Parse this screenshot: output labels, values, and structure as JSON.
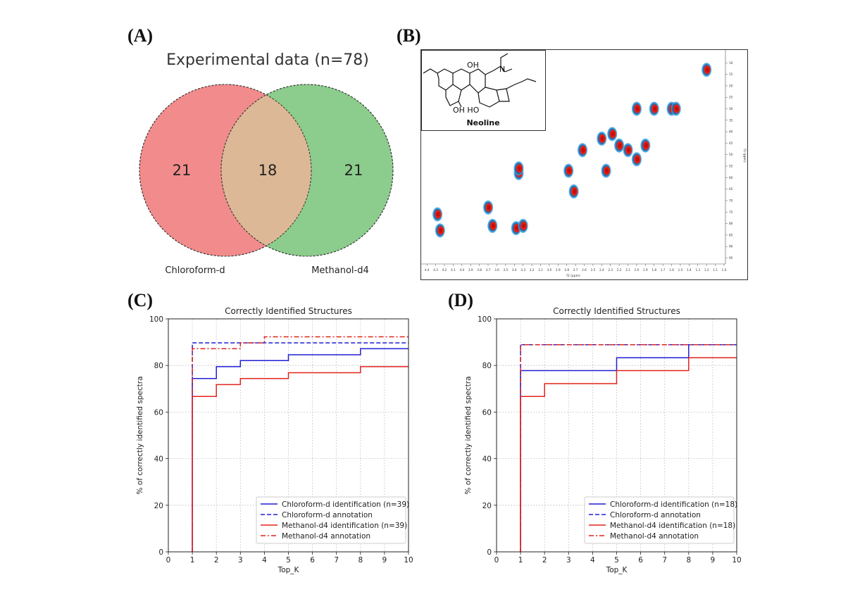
{
  "panels": {
    "a": "(A)",
    "b": "(B)",
    "c": "(C)",
    "d": "(D)"
  },
  "venn": {
    "title": "Experimental data (n=78)",
    "left_count": "21",
    "overlap_count": "18",
    "right_count": "21",
    "left_label": "Chloroform-d",
    "right_label": "Methanol-d4",
    "left_color": "#f28b8b",
    "right_color": "#8ccc8c",
    "overlap_color": "#dcb896"
  },
  "nmr": {
    "compound_name": "Neoline",
    "oh_label_top": "OH",
    "oh_label_bottom": "OH HO",
    "n_label": "N",
    "xlabel": "f2 (ppm)",
    "ylabel": "f1 (ppm)",
    "xticks": [
      "4.4",
      "4.3",
      "4.2",
      "4.1",
      "4.0",
      "3.9",
      "3.8",
      "3.7",
      "3.6",
      "3.5",
      "3.4",
      "3.3",
      "3.2",
      "3.1",
      "3.0",
      "2.9",
      "2.8",
      "2.7",
      "2.6",
      "2.5",
      "2.4",
      "2.3",
      "2.2",
      "2.1",
      "2.0",
      "1.9",
      "1.8",
      "1.7",
      "1.6",
      "1.5",
      "1.4",
      "1.3",
      "1.2",
      "1.1",
      "1.0"
    ],
    "yticks": [
      "10",
      "15",
      "20",
      "25",
      "30",
      "35",
      "40",
      "45",
      "50",
      "55",
      "60",
      "65",
      "70",
      "75",
      "80",
      "85",
      "90",
      "95"
    ],
    "peaks": [
      {
        "x": 1.2,
        "y": 13
      },
      {
        "x": 2.0,
        "y": 30
      },
      {
        "x": 1.8,
        "y": 30
      },
      {
        "x": 1.6,
        "y": 30
      },
      {
        "x": 1.55,
        "y": 30
      },
      {
        "x": 2.4,
        "y": 43
      },
      {
        "x": 2.28,
        "y": 41
      },
      {
        "x": 2.2,
        "y": 46
      },
      {
        "x": 2.1,
        "y": 48
      },
      {
        "x": 1.9,
        "y": 46
      },
      {
        "x": 2.62,
        "y": 48
      },
      {
        "x": 2.0,
        "y": 52
      },
      {
        "x": 2.35,
        "y": 57
      },
      {
        "x": 2.78,
        "y": 57
      },
      {
        "x": 2.72,
        "y": 66
      },
      {
        "x": 3.35,
        "y": 58
      },
      {
        "x": 3.35,
        "y": 56
      },
      {
        "x": 4.28,
        "y": 76
      },
      {
        "x": 4.25,
        "y": 83
      },
      {
        "x": 3.7,
        "y": 73
      },
      {
        "x": 3.65,
        "y": 81
      },
      {
        "x": 3.38,
        "y": 82
      },
      {
        "x": 3.3,
        "y": 81
      }
    ]
  },
  "chart_data": [
    {
      "type": "line",
      "title": "Correctly Identified Structures",
      "xlabel": "Top_K",
      "ylabel": "% of correctly identified spectra",
      "xlim": [
        0,
        10
      ],
      "ylim": [
        0,
        100
      ],
      "xticks": [
        "0",
        "1",
        "2",
        "3",
        "4",
        "5",
        "6",
        "7",
        "8",
        "9",
        "10"
      ],
      "yticks": [
        "0",
        "20",
        "40",
        "60",
        "80",
        "100"
      ],
      "legend_position": "lower-right",
      "series": [
        {
          "name": "Chloroform-d identification (n=39)",
          "style": "solid",
          "color": "#1f1fd6",
          "x": [
            1,
            2,
            3,
            4,
            5,
            6,
            7,
            8,
            9,
            10
          ],
          "values": [
            74.4,
            79.5,
            82.1,
            82.1,
            84.6,
            84.6,
            84.6,
            87.2,
            87.2,
            87.2
          ]
        },
        {
          "name": "Chloroform-d annotation",
          "style": "dashed",
          "color": "#1f1fd6",
          "x": [
            1,
            2,
            3,
            4,
            5,
            6,
            7,
            8,
            9,
            10
          ],
          "values": [
            89.7,
            89.7,
            89.7,
            89.7,
            89.7,
            89.7,
            89.7,
            89.7,
            89.7,
            89.7
          ]
        },
        {
          "name": "Methanol-d4 identification (n=39)",
          "style": "solid",
          "color": "#e0231c",
          "x": [
            1,
            2,
            3,
            4,
            5,
            6,
            7,
            8,
            9,
            10
          ],
          "values": [
            66.7,
            71.8,
            74.4,
            74.4,
            76.9,
            76.9,
            76.9,
            79.5,
            79.5,
            79.5
          ]
        },
        {
          "name": "Methanol-d4 annotation",
          "style": "dashdot",
          "color": "#e0231c",
          "x": [
            1,
            2,
            3,
            4,
            5,
            6,
            7,
            8,
            9,
            10
          ],
          "values": [
            87.2,
            87.2,
            89.7,
            92.3,
            92.3,
            92.3,
            92.3,
            92.3,
            92.3,
            92.3
          ]
        }
      ]
    },
    {
      "type": "line",
      "title": "Correctly Identified Structures",
      "xlabel": "Top_K",
      "ylabel": "% of correctly identified spectra",
      "xlim": [
        0,
        10
      ],
      "ylim": [
        0,
        100
      ],
      "xticks": [
        "0",
        "1",
        "2",
        "3",
        "4",
        "5",
        "6",
        "7",
        "8",
        "9",
        "10"
      ],
      "yticks": [
        "0",
        "20",
        "40",
        "60",
        "80",
        "100"
      ],
      "legend_position": "lower-right",
      "series": [
        {
          "name": "Chloroform-d identification (n=18)",
          "style": "solid",
          "color": "#1f1fd6",
          "x": [
            1,
            2,
            3,
            4,
            5,
            6,
            7,
            8,
            9,
            10
          ],
          "values": [
            77.8,
            77.8,
            77.8,
            77.8,
            83.3,
            83.3,
            83.3,
            88.9,
            88.9,
            88.9
          ]
        },
        {
          "name": "Chloroform-d annotation",
          "style": "dashed",
          "color": "#1f1fd6",
          "x": [
            1,
            2,
            3,
            4,
            5,
            6,
            7,
            8,
            9,
            10
          ],
          "values": [
            88.9,
            88.9,
            88.9,
            88.9,
            88.9,
            88.9,
            88.9,
            88.9,
            88.9,
            88.9
          ]
        },
        {
          "name": "Methanol-d4 identification (n=18)",
          "style": "solid",
          "color": "#e0231c",
          "x": [
            1,
            2,
            3,
            4,
            5,
            6,
            7,
            8,
            9,
            10
          ],
          "values": [
            66.7,
            72.2,
            72.2,
            72.2,
            77.8,
            77.8,
            77.8,
            83.3,
            83.3,
            83.3
          ]
        },
        {
          "name": "Methanol-d4 annotation",
          "style": "dashdot",
          "color": "#e0231c",
          "x": [
            1,
            2,
            3,
            4,
            5,
            6,
            7,
            8,
            9,
            10
          ],
          "values": [
            88.9,
            88.9,
            88.9,
            88.9,
            88.9,
            88.9,
            88.9,
            88.9,
            88.9,
            88.9
          ]
        }
      ]
    }
  ]
}
